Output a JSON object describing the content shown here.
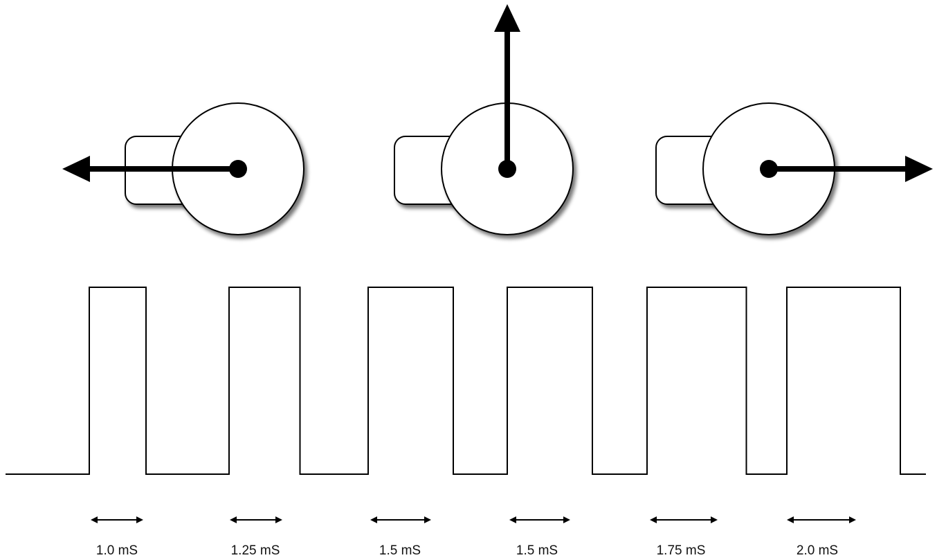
{
  "pulses": [
    {
      "width_ms": 1.0,
      "label": "1.0 mS"
    },
    {
      "width_ms": 1.25,
      "label": "1.25 mS"
    },
    {
      "width_ms": 1.5,
      "label": "1.5 mS"
    },
    {
      "width_ms": 1.5,
      "label": "1.5 mS"
    },
    {
      "width_ms": 1.75,
      "label": "1.75 mS"
    },
    {
      "width_ms": 2.0,
      "label": "2.0 mS"
    }
  ],
  "servos": [
    {
      "position": "left",
      "arm_direction": "left"
    },
    {
      "position": "center",
      "arm_direction": "up"
    },
    {
      "position": "right",
      "arm_direction": "right"
    }
  ],
  "colors": {
    "stroke": "#000000",
    "fill": "#ffffff",
    "shadow": "#555555"
  }
}
